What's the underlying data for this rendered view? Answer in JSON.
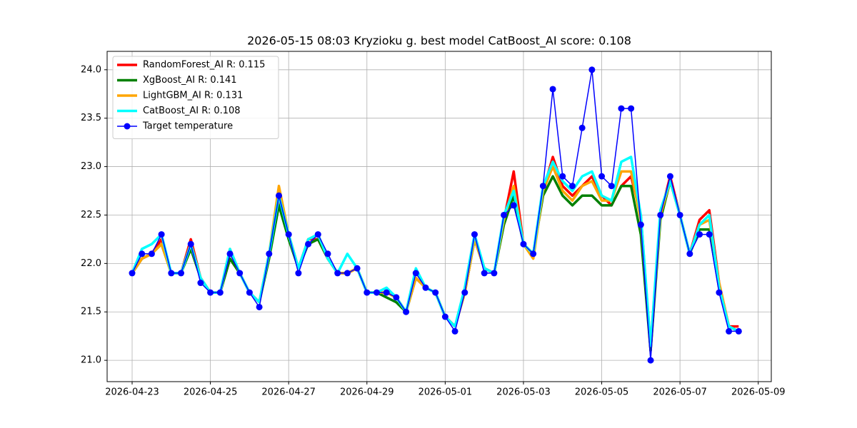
{
  "chart_data": {
    "type": "line",
    "title": "2026-05-15 08:03 Kryzioku g. best model CatBoost_AI score: 0.108",
    "x": [
      "2026-04-23 00:00",
      "2026-04-23 06:00",
      "2026-04-23 12:00",
      "2026-04-23 18:00",
      "2026-04-24 00:00",
      "2026-04-24 06:00",
      "2026-04-24 12:00",
      "2026-04-24 18:00",
      "2026-04-25 00:00",
      "2026-04-25 06:00",
      "2026-04-25 12:00",
      "2026-04-25 18:00",
      "2026-04-26 00:00",
      "2026-04-26 06:00",
      "2026-04-26 12:00",
      "2026-04-26 18:00",
      "2026-04-27 00:00",
      "2026-04-27 06:00",
      "2026-04-27 12:00",
      "2026-04-27 18:00",
      "2026-04-28 00:00",
      "2026-04-28 06:00",
      "2026-04-28 12:00",
      "2026-04-28 18:00",
      "2026-04-29 00:00",
      "2026-04-29 06:00",
      "2026-04-29 12:00",
      "2026-04-29 18:00",
      "2026-04-30 00:00",
      "2026-04-30 06:00",
      "2026-04-30 12:00",
      "2026-04-30 18:00",
      "2026-05-01 00:00",
      "2026-05-01 06:00",
      "2026-05-01 12:00",
      "2026-05-01 18:00",
      "2026-05-02 00:00",
      "2026-05-02 06:00",
      "2026-05-02 12:00",
      "2026-05-02 18:00",
      "2026-05-03 00:00",
      "2026-05-03 06:00",
      "2026-05-03 12:00",
      "2026-05-03 18:00",
      "2026-05-04 00:00",
      "2026-05-04 06:00",
      "2026-05-04 12:00",
      "2026-05-04 18:00",
      "2026-05-05 00:00",
      "2026-05-05 06:00",
      "2026-05-05 12:00",
      "2026-05-05 18:00",
      "2026-05-06 00:00",
      "2026-05-06 06:00",
      "2026-05-06 12:00",
      "2026-05-06 18:00",
      "2026-05-07 00:00",
      "2026-05-07 06:00",
      "2026-05-07 12:00",
      "2026-05-07 18:00",
      "2026-05-08 00:00",
      "2026-05-08 06:00",
      "2026-05-08 12:00"
    ],
    "series": [
      {
        "name": "RandomForest_AI R: 0.115",
        "color": "#ff0000",
        "values": [
          21.9,
          22.05,
          22.1,
          22.25,
          21.9,
          21.9,
          22.25,
          21.85,
          21.7,
          21.7,
          22.05,
          21.9,
          21.7,
          21.6,
          22.1,
          22.65,
          22.3,
          21.95,
          22.25,
          22.25,
          22.05,
          21.9,
          21.9,
          21.95,
          21.7,
          21.7,
          21.7,
          21.65,
          21.5,
          21.85,
          21.75,
          21.7,
          21.45,
          21.35,
          21.7,
          22.25,
          21.95,
          21.9,
          22.45,
          22.95,
          22.2,
          22.1,
          22.75,
          23.1,
          22.8,
          22.7,
          22.8,
          22.9,
          22.7,
          22.6,
          22.8,
          22.9,
          22.5,
          21.1,
          22.5,
          22.9,
          22.5,
          22.1,
          22.45,
          22.55,
          21.8,
          21.35,
          21.35
        ]
      },
      {
        "name": "XgBoost_AI R: 0.141",
        "color": "#008000",
        "values": [
          21.9,
          22.05,
          22.1,
          22.2,
          21.9,
          21.9,
          22.15,
          21.85,
          21.7,
          21.7,
          22.05,
          21.9,
          21.7,
          21.6,
          22.05,
          22.6,
          22.25,
          21.95,
          22.2,
          22.25,
          22.05,
          21.9,
          21.9,
          21.95,
          21.7,
          21.7,
          21.65,
          21.6,
          21.5,
          21.85,
          21.75,
          21.7,
          21.45,
          21.35,
          21.7,
          22.25,
          21.95,
          21.9,
          22.4,
          22.7,
          22.2,
          22.1,
          22.7,
          22.9,
          22.7,
          22.6,
          22.7,
          22.7,
          22.6,
          22.6,
          22.8,
          22.8,
          22.3,
          21.1,
          22.45,
          22.85,
          22.5,
          22.1,
          22.35,
          22.35,
          21.75,
          21.35,
          21.3
        ]
      },
      {
        "name": "LightGBM_AI R: 0.131",
        "color": "#ffa500",
        "values": [
          21.9,
          22.05,
          22.1,
          22.2,
          21.9,
          21.9,
          22.2,
          21.85,
          21.7,
          21.7,
          22.15,
          21.9,
          21.7,
          21.6,
          22.1,
          22.8,
          22.3,
          21.95,
          22.25,
          22.3,
          22.05,
          21.9,
          21.9,
          21.95,
          21.7,
          21.7,
          21.7,
          21.65,
          21.5,
          21.85,
          21.75,
          21.7,
          21.45,
          21.35,
          21.7,
          22.25,
          21.95,
          21.9,
          22.45,
          22.8,
          22.2,
          22.05,
          22.75,
          23.0,
          22.75,
          22.65,
          22.8,
          22.85,
          22.65,
          22.65,
          22.95,
          22.95,
          22.45,
          21.15,
          22.5,
          22.85,
          22.5,
          22.1,
          22.4,
          22.45,
          21.8,
          21.35,
          21.3
        ]
      },
      {
        "name": "CatBoost_AI R: 0.108",
        "color": "#00ffff",
        "values": [
          21.9,
          22.15,
          22.2,
          22.3,
          21.9,
          21.9,
          22.2,
          21.85,
          21.7,
          21.7,
          22.15,
          21.9,
          21.7,
          21.6,
          22.1,
          22.7,
          22.3,
          21.95,
          22.25,
          22.3,
          22.05,
          21.9,
          22.1,
          21.95,
          21.7,
          21.7,
          21.75,
          21.65,
          21.5,
          21.95,
          21.75,
          21.7,
          21.45,
          21.35,
          21.75,
          22.3,
          21.95,
          21.9,
          22.5,
          22.75,
          22.2,
          22.1,
          22.8,
          23.05,
          22.85,
          22.75,
          22.9,
          22.95,
          22.7,
          22.65,
          23.05,
          23.1,
          22.5,
          21.15,
          22.55,
          22.85,
          22.5,
          22.1,
          22.4,
          22.5,
          21.75,
          21.35,
          21.3
        ]
      },
      {
        "name": "Target temperature",
        "color": "#0000ff",
        "marker": true,
        "values": [
          21.9,
          22.1,
          22.1,
          22.3,
          21.9,
          21.9,
          22.2,
          21.8,
          21.7,
          21.7,
          22.1,
          21.9,
          21.7,
          21.55,
          22.1,
          22.7,
          22.3,
          21.9,
          22.2,
          22.3,
          22.1,
          21.9,
          21.9,
          21.95,
          21.7,
          21.7,
          21.7,
          21.65,
          21.5,
          21.9,
          21.75,
          21.7,
          21.45,
          21.3,
          21.7,
          22.3,
          21.9,
          21.9,
          22.5,
          22.6,
          22.2,
          22.1,
          22.8,
          23.8,
          22.9,
          22.8,
          23.4,
          24.0,
          22.9,
          22.8,
          23.6,
          23.6,
          22.4,
          21.0,
          22.5,
          22.9,
          22.5,
          22.1,
          22.3,
          22.3,
          21.7,
          21.3,
          21.3
        ]
      }
    ],
    "xlim": [
      "2026-04-22 08:40",
      "2026-05-09 08:00"
    ],
    "xticks": [
      "2026-04-23",
      "2026-04-25",
      "2026-04-27",
      "2026-04-29",
      "2026-05-01",
      "2026-05-03",
      "2026-05-05",
      "2026-05-07",
      "2026-05-09"
    ],
    "ylim": [
      20.78,
      24.19
    ],
    "yticks": [
      {
        "value": 21,
        "label": "21.0"
      },
      21.5,
      {
        "value": 22,
        "label": "22.0"
      },
      22.5,
      {
        "value": 23,
        "label": "23.0"
      },
      23.5,
      {
        "value": 24,
        "label": "24.0"
      }
    ],
    "grid": true,
    "legend": "upper left"
  }
}
